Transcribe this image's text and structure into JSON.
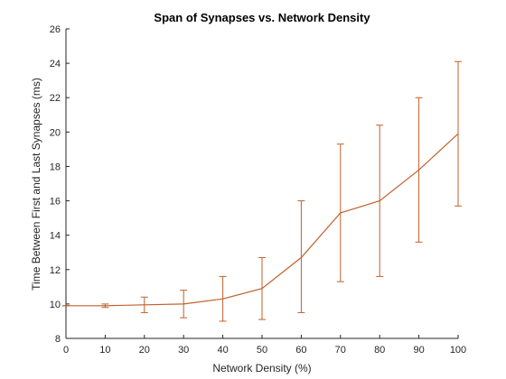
{
  "chart_data": {
    "type": "line",
    "title": "Span of Synapses vs. Network Density",
    "xlabel": "Network Density (%)",
    "ylabel": "Time Between First and Last Synapses (ms)",
    "xlim": [
      0,
      100
    ],
    "ylim": [
      8,
      26
    ],
    "xticks": [
      0,
      10,
      20,
      30,
      40,
      50,
      60,
      70,
      80,
      90,
      100
    ],
    "yticks": [
      8,
      10,
      12,
      14,
      16,
      18,
      20,
      22,
      24,
      26
    ],
    "grid": false,
    "legend": "none",
    "series": [
      {
        "color": "#c0602a",
        "x": [
          0,
          10,
          20,
          30,
          40,
          50,
          60,
          70,
          80,
          90,
          100
        ],
        "y": [
          9.9,
          9.9,
          9.95,
          10.0,
          10.3,
          10.9,
          12.7,
          15.3,
          16.0,
          17.8,
          19.9
        ],
        "error_low": [
          9.9,
          9.8,
          9.5,
          9.2,
          9.0,
          9.1,
          9.5,
          11.3,
          11.6,
          13.6,
          15.7
        ],
        "error_high": [
          9.9,
          10.0,
          10.4,
          10.8,
          11.6,
          12.7,
          16.0,
          19.3,
          20.4,
          22.0,
          24.1
        ]
      }
    ]
  }
}
